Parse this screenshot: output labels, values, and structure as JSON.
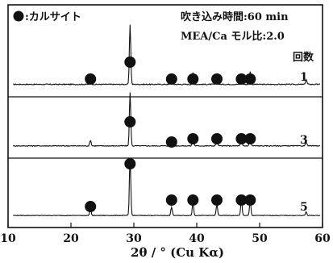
{
  "legend": {
    "label": ":カルサイト",
    "marker_color": "#111111"
  },
  "annotations": {
    "blow_time": "吹き込み時間:60 min",
    "mole_ratio": "MEA/Ca モル比:2.0",
    "times_header": "回数"
  },
  "chart_data": {
    "type": "line",
    "xlabel": "2θ / ° (Cu Kα)",
    "xlim": [
      10,
      60
    ],
    "x_ticks": [
      "10",
      "20",
      "30",
      "40",
      "50",
      "60"
    ],
    "y_ticks": [],
    "ylabel": "",
    "grid": false,
    "legend_position": "top-left",
    "series": [
      {
        "name": "1",
        "peaks": [
          [
            23.1,
            0.1
          ],
          [
            29.4,
            0.62
          ],
          [
            36.0,
            0.08
          ],
          [
            39.4,
            0.12
          ],
          [
            43.2,
            0.1
          ],
          [
            47.1,
            0.11
          ],
          [
            48.5,
            0.13
          ],
          [
            57.4,
            0.05
          ]
        ]
      },
      {
        "name": "3",
        "peaks": [
          [
            23.1,
            0.07
          ],
          [
            29.4,
            0.66
          ],
          [
            36.0,
            0.07
          ],
          [
            39.4,
            0.12
          ],
          [
            43.2,
            0.1
          ],
          [
            47.1,
            0.1
          ],
          [
            48.5,
            0.13
          ],
          [
            57.4,
            0.05
          ]
        ]
      },
      {
        "name": "5",
        "peaks": [
          [
            23.1,
            0.12
          ],
          [
            29.4,
            0.95
          ],
          [
            36.0,
            0.14
          ],
          [
            39.4,
            0.22
          ],
          [
            43.2,
            0.19
          ],
          [
            47.1,
            0.26
          ],
          [
            48.5,
            0.24
          ],
          [
            57.4,
            0.06
          ]
        ]
      }
    ],
    "calcite_markers": [
      [
        23.1,
        5
      ],
      [
        29.4,
        1
      ],
      [
        29.4,
        3
      ],
      [
        29.4,
        5
      ],
      [
        36.0,
        1
      ],
      [
        36.0,
        3
      ],
      [
        36.0,
        5
      ],
      [
        39.4,
        1
      ],
      [
        39.4,
        3
      ],
      [
        39.4,
        5
      ],
      [
        43.2,
        1
      ],
      [
        43.2,
        3
      ],
      [
        43.2,
        5
      ],
      [
        47.1,
        1
      ],
      [
        47.1,
        3
      ],
      [
        47.1,
        5
      ],
      [
        48.5,
        1
      ],
      [
        48.5,
        3
      ],
      [
        48.5,
        5
      ],
      [
        23.1,
        1
      ]
    ]
  }
}
